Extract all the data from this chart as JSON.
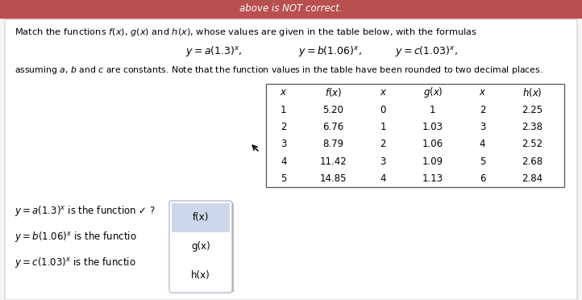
{
  "bg_top_color": "#c9a0a0",
  "bg_card_color": "#f5f5f5",
  "card_color": "#ffffff",
  "red_bar_color": "#b85050",
  "header_text": "above is NOT correct.",
  "main_text_line1": "Match the functions $f(x)$, $g(x)$ and $h(x)$, whose values are given in the table below, with the formulas",
  "formula1": "$y = a(1.3)^x$,",
  "formula2": "$y = b(1.06)^x$,",
  "formula3": "$y = c(1.03)^x$,",
  "assuming_text": "assuming $a$, $b$ and $c$ are constants. Note that the function values in the table have been rounded to two decimal places.",
  "table_headers": [
    "$x$",
    "$f(x)$",
    "$x$",
    "$g(x)$",
    "$x$",
    "$h(x)$"
  ],
  "table_data": [
    [
      1,
      5.2,
      0,
      1,
      2,
      2.25
    ],
    [
      2,
      6.76,
      1,
      1.03,
      3,
      2.38
    ],
    [
      3,
      8.79,
      2,
      1.06,
      4,
      2.52
    ],
    [
      4,
      11.42,
      3,
      1.09,
      5,
      2.68
    ],
    [
      5,
      14.85,
      4,
      1.13,
      6,
      2.84
    ]
  ],
  "match_line1": "$y = a(1.3)^x$ is the function",
  "match_check1": " ✓ ?",
  "match_line2": "$y = b(1.06)^x$ is the functio",
  "match_line3": "$y = c(1.03)^x$ is the functio",
  "dropdown_options": [
    "f(x)",
    "g(x)",
    "h(x)"
  ]
}
